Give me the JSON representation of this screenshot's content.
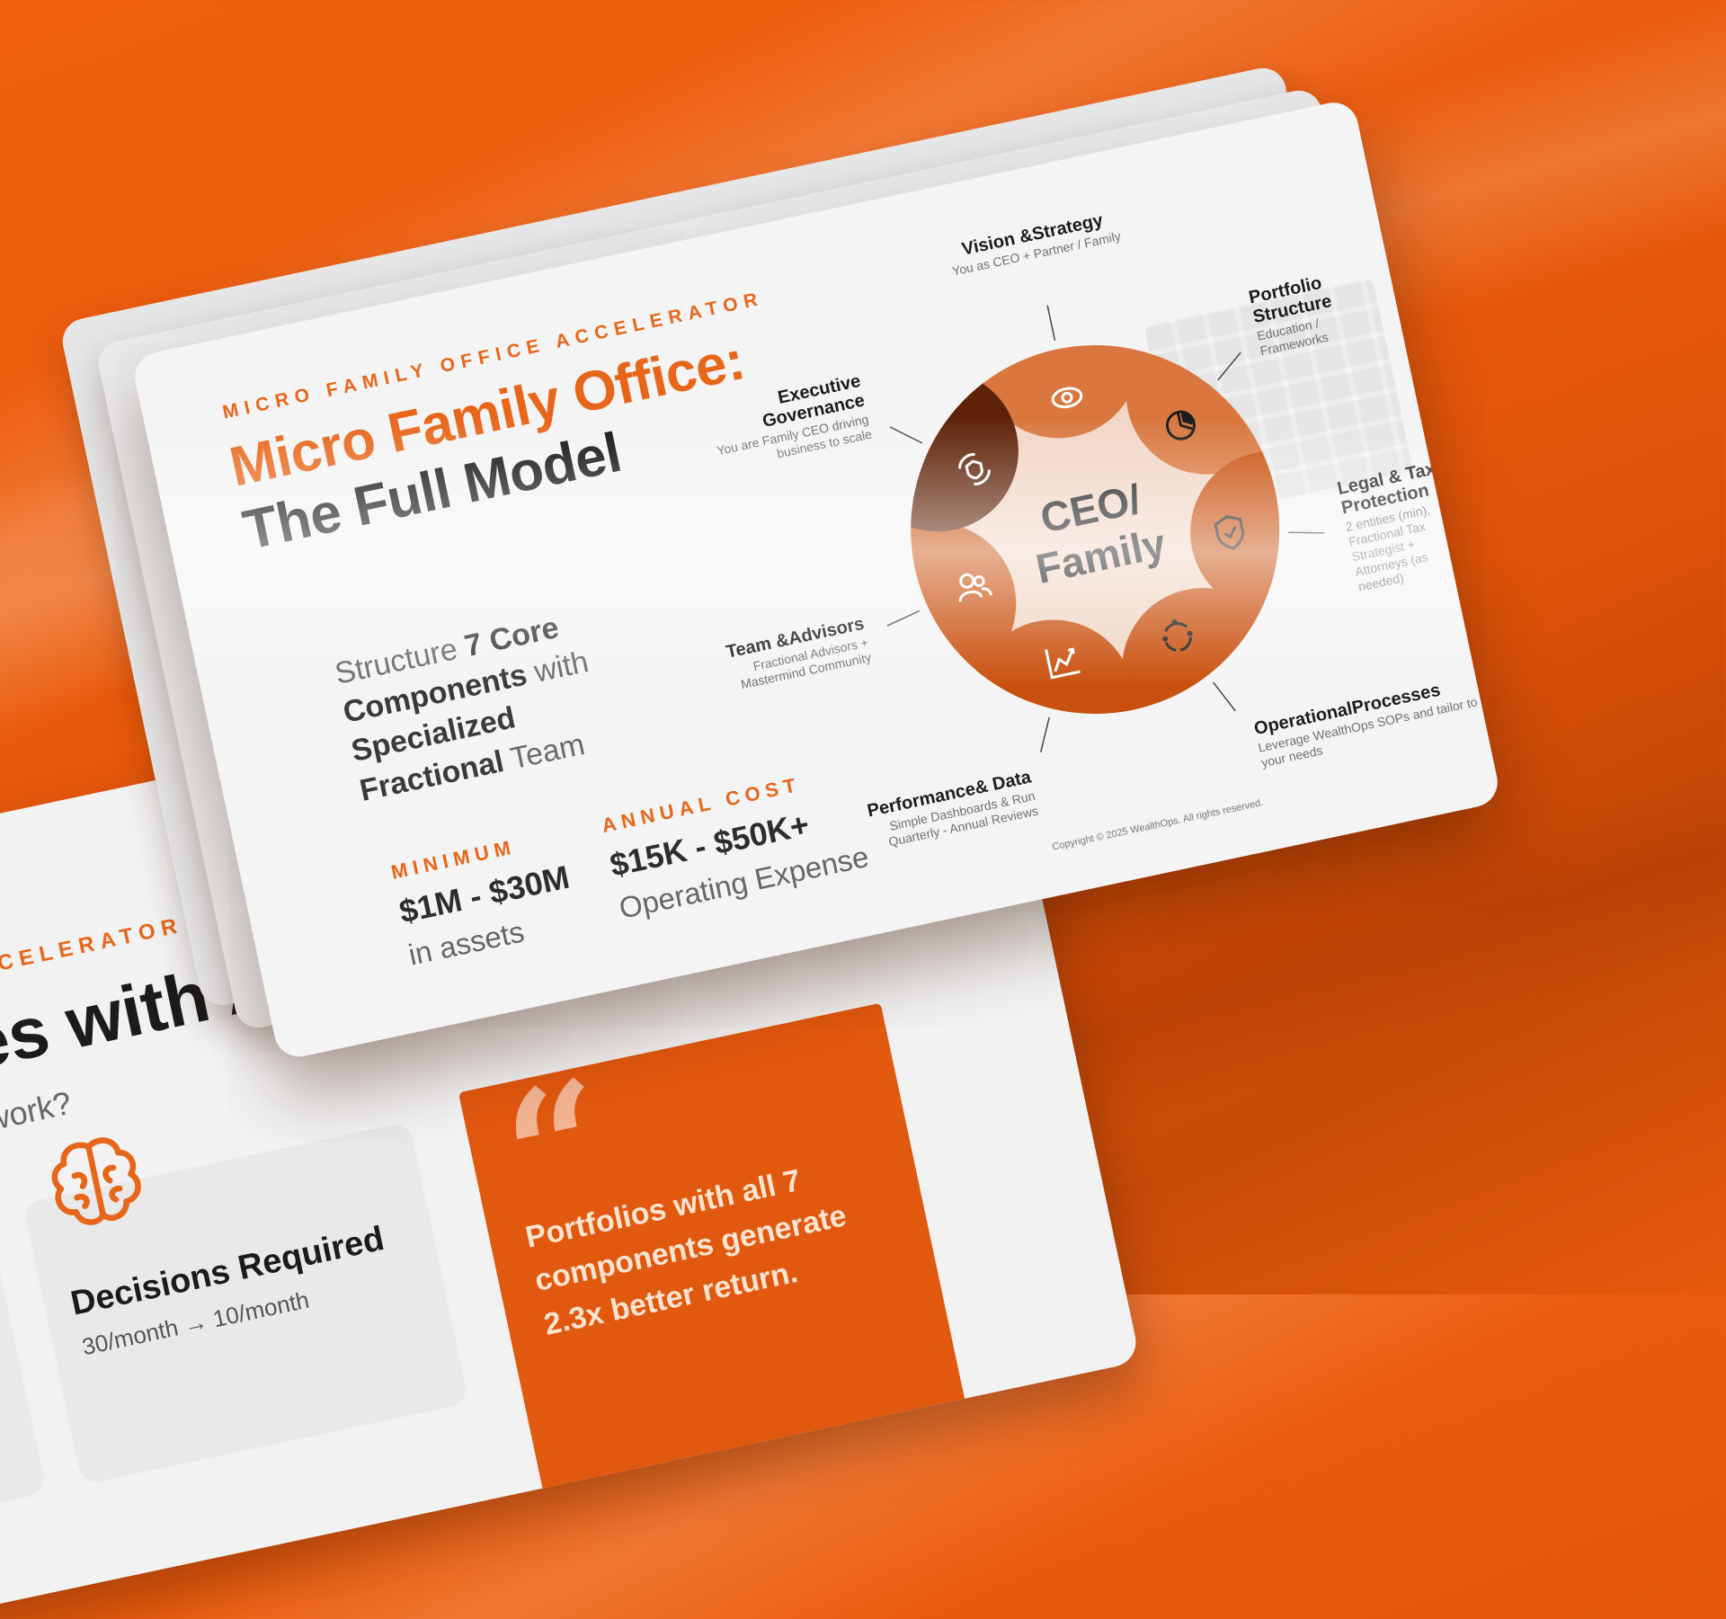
{
  "main_slide": {
    "eyebrow": "MICRO FAMILY OFFICE ACCELERATOR",
    "title_line1": "Micro Family Office:",
    "title_line2": "The Full Model",
    "structure": {
      "prefix": "Structure ",
      "bold1": "7 Core Components",
      "mid": " with ",
      "bold2": "Specialized Fractional",
      "suffix": " Team"
    },
    "minimum": {
      "label": "MINIMUM",
      "value": "$1M - $30M",
      "sub": "in assets"
    },
    "annual_cost": {
      "label": "ANNUAL COST",
      "value": "$15K - $50K+",
      "sub": "Operating Expense"
    },
    "copyright": "Copyright © 2025 WealthOps. All rights reserved.",
    "diagram": {
      "center_line1": "CEO/",
      "center_line2": "Family",
      "components": [
        {
          "title_lines": [
            "Vision &Strategy"
          ],
          "sub_lines": [
            "You as CEO + Partner / Family"
          ],
          "icon": "eye-icon"
        },
        {
          "title_lines": [
            "Portfolio",
            "Structure"
          ],
          "sub_lines": [
            "Education /",
            "Frameworks"
          ],
          "icon": "pie-chart-icon"
        },
        {
          "title_lines": [
            "Legal & Tax",
            "Protection"
          ],
          "sub_lines": [
            "2 entities (min),",
            "Fractional Tax",
            "Strategist +",
            "Attorneys (as",
            "needed)"
          ],
          "icon": "shield-check-icon"
        },
        {
          "title_lines": [
            "OperationalProcesses"
          ],
          "sub_lines": [
            "Leverage WealthOps SOPs and tailor to",
            "your needs"
          ],
          "icon": "process-cycle-icon"
        },
        {
          "title_lines": [
            "Performance& Data"
          ],
          "sub_lines": [
            "Simple Dashboards & Run",
            "Quarterly - Annual Reviews"
          ],
          "icon": "line-chart-icon"
        },
        {
          "title_lines": [
            "Team &Advisors"
          ],
          "sub_lines": [
            "Fractional Advisors +",
            "Mastermind Community"
          ],
          "icon": "team-icon"
        },
        {
          "title_lines": [
            "Executive",
            "Governance"
          ],
          "sub_lines": [
            "You are Family CEO driving",
            "business to scale"
          ],
          "icon": "governance-icon"
        }
      ]
    },
    "colors": {
      "accent": "#e8661a",
      "petal_light": "#d9773e",
      "petal_mid": "#c9500e",
      "petal_dark": "#5e2208",
      "disc": "#f1d6c6"
    }
  },
  "secondary_slide": {
    "eyebrow": "ACCELERATOR",
    "title": "ges with All",
    "subtitle": "e work?",
    "card_title": "Decisions Required",
    "card_sub": "30/month → 10/month",
    "card_icon": "brain-icon",
    "quote": "Portfolios with all 7 components generate 2.3x better return."
  }
}
